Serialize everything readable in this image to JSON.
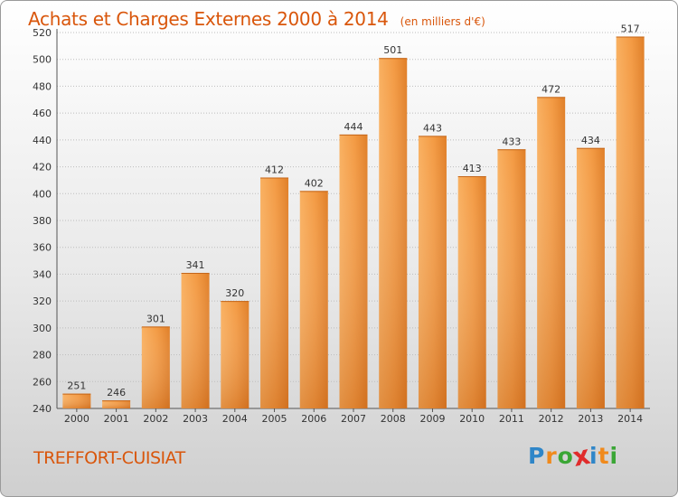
{
  "header": {
    "title": "Achats et Charges Externes 2000 à 2014",
    "subtitle": "(en milliers d'€)"
  },
  "footer": {
    "commune": "TREFFORT-CUISIAT",
    "logo_text": "Proxiti",
    "logo_letters": [
      "P",
      "r",
      "o",
      "x",
      "i",
      "t",
      "i"
    ],
    "logo_colors": [
      "#2f86c8",
      "#f08a1c",
      "#3aa635",
      "#e02c2c",
      "#2f86c8",
      "#f08a1c",
      "#3aa635"
    ]
  },
  "colors": {
    "accent": "#d9560b",
    "bar_light": "#f7a14a",
    "bar_dark": "#d8731f",
    "grid": "#bdbdbd"
  },
  "chart_data": {
    "type": "bar",
    "title": "Achats et Charges Externes 2000 à 2014",
    "subtitle": "(en milliers d'€)",
    "xlabel": "",
    "ylabel": "",
    "categories": [
      "2000",
      "2001",
      "2002",
      "2003",
      "2004",
      "2005",
      "2006",
      "2007",
      "2008",
      "2009",
      "2010",
      "2011",
      "2012",
      "2013",
      "2014"
    ],
    "values": [
      251,
      246,
      301,
      341,
      320,
      412,
      402,
      444,
      501,
      443,
      413,
      433,
      472,
      434,
      517
    ],
    "ylim": [
      240,
      520
    ],
    "yticks": [
      240,
      260,
      280,
      300,
      320,
      340,
      360,
      380,
      400,
      420,
      440,
      460,
      480,
      500,
      520
    ],
    "grid": true,
    "data_labels": true
  }
}
